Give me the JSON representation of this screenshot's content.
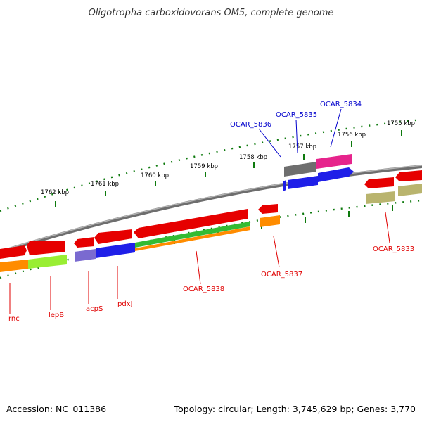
{
  "title": "Oligotropha carboxidovorans OM5, complete genome",
  "footer": {
    "accession": "Accession: NC_011386",
    "summary": "Topology: circular; Length: 3,745,629 bp; Genes: 3,770"
  },
  "colors": {
    "backbone": "#7a7a7a",
    "tick": "#0e7a0e",
    "label_red": "#e00000",
    "label_blue": "#0000cc",
    "red": "#e60000",
    "blue": "#1f1fe8",
    "green": "#33bb33",
    "orange": "#ff8c00",
    "gray": "#6e6e6e",
    "magenta": "#e6248c",
    "olive": "#b9b46e",
    "lime": "#99ee33",
    "purple": "#7a6ad0"
  },
  "ticks": [
    "1762 kbp",
    "1761 kbp",
    "1760 kbp",
    "1759 kbp",
    "1758 kbp",
    "1757 kbp",
    "1756 kbp",
    "1755 kbp"
  ],
  "gene_labels": {
    "rnc": "rnc",
    "lepB": "lepB",
    "acpS": "acpS",
    "pdxJ": "pdxJ",
    "ocar5838": "OCAR_5838",
    "ocar5837": "OCAR_5837",
    "ocar5833": "OCAR_5833",
    "ocar5836": "OCAR_5836",
    "ocar5835": "OCAR_5835",
    "ocar5834": "OCAR_5834"
  }
}
